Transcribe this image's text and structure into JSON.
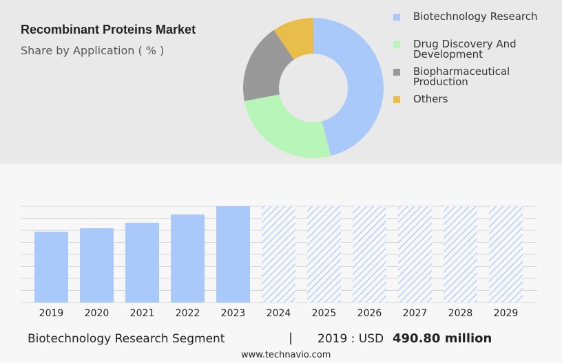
{
  "chart_data": [
    {
      "type": "donut",
      "title": "Recombinant Proteins Market",
      "subtitle": "Share by Application ( % )",
      "categories": [
        "Biotechnology Research",
        "Drug Discovery And Development",
        "Biopharmaceutical Production",
        "Others"
      ],
      "values": [
        46,
        26,
        18.5,
        9.5
      ],
      "colors": [
        "#a9c9fb",
        "#b8f5b8",
        "#999999",
        "#e8bd4a"
      ]
    },
    {
      "type": "bar",
      "categories": [
        "2019",
        "2020",
        "2021",
        "2022",
        "2023",
        "2024",
        "2025",
        "2026",
        "2027",
        "2028",
        "2029"
      ],
      "values": [
        490.8,
        514.6,
        552.8,
        610,
        667,
        null,
        null,
        null,
        null,
        null,
        null
      ],
      "color": "#a9c9fb",
      "ylim": [
        0,
        667
      ],
      "grid_lines": 8
    }
  ],
  "footer": {
    "segment": "Biotechnology Research Segment",
    "separator": "|",
    "year_label": "2019 : USD",
    "value_label": "490.80 million",
    "source": "www.technavio.com"
  }
}
